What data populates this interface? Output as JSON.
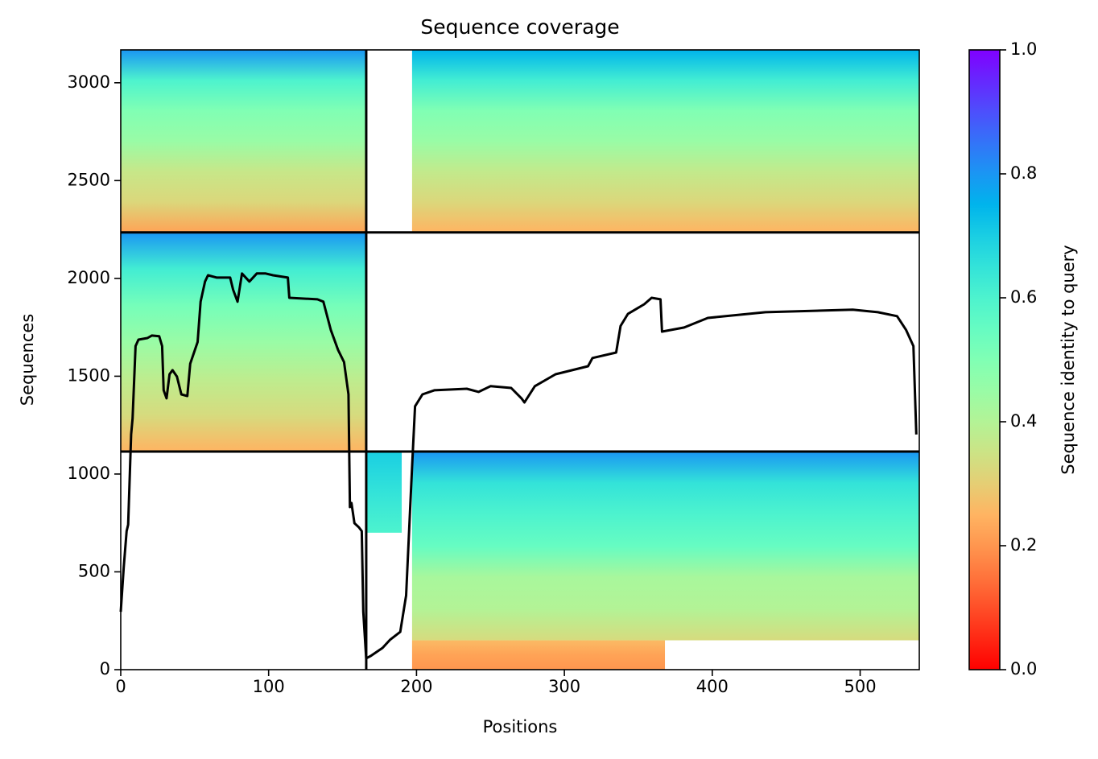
{
  "chart_data": {
    "type": "coverage",
    "title": "Sequence coverage",
    "x_label": "Positions",
    "y_label": "Sequences",
    "colorbar_label": "Sequence identity to query",
    "colormap": "rainbow_r",
    "xlim": [
      0,
      540
    ],
    "ylim": [
      0,
      3168
    ],
    "xticks": [
      0,
      100,
      200,
      300,
      400,
      500
    ],
    "yticks": [
      0,
      500,
      1000,
      1500,
      2000,
      2500,
      3000
    ],
    "clim": [
      0,
      1
    ],
    "cticks": [
      {
        "value": 0,
        "label": "0.0"
      },
      {
        "value": 0.2,
        "label": "0.2"
      },
      {
        "value": 0.4,
        "label": "0.4"
      },
      {
        "value": 0.6,
        "label": "0.6"
      },
      {
        "value": 0.8,
        "label": "0.8"
      },
      {
        "value": 1,
        "label": "1.0"
      }
    ],
    "dividers": {
      "x": [
        166
      ],
      "y": [
        1115,
        2235
      ],
      "color": "#000000"
    },
    "blocks": [
      {
        "x": [
          0,
          166
        ],
        "y": [
          2235,
          3168
        ],
        "identity": [
          0.22,
          0.32,
          0.36,
          0.45,
          0.5,
          0.6,
          0.8
        ]
      },
      {
        "x": [
          0,
          166
        ],
        "y": [
          1115,
          2235
        ],
        "identity": [
          0.25,
          0.33,
          0.38,
          0.45,
          0.52,
          0.62,
          0.8
        ]
      },
      {
        "x": [
          197,
          540
        ],
        "y": [
          2235,
          3168
        ],
        "identity": [
          0.25,
          0.32,
          0.37,
          0.45,
          0.5,
          0.62,
          0.75
        ]
      },
      {
        "x": [
          197,
          540
        ],
        "y": [
          150,
          1115
        ],
        "identity": [
          0.33,
          0.4,
          0.42,
          0.55,
          0.6,
          0.65,
          0.8
        ]
      },
      {
        "x": [
          197,
          368
        ],
        "y": [
          0,
          150
        ],
        "identity": [
          0.2,
          0.22,
          0.26
        ]
      },
      {
        "x": [
          166,
          190
        ],
        "y": [
          700,
          1115
        ],
        "identity": [
          0.6,
          0.65,
          0.7
        ]
      }
    ],
    "line": {
      "color": "#000000",
      "x": [
        0,
        2,
        4,
        5,
        7,
        8,
        10,
        12,
        18,
        21,
        26,
        28,
        29,
        31,
        33,
        35,
        38,
        41,
        45,
        47,
        52,
        54,
        57,
        59,
        65,
        74,
        76,
        79,
        82,
        87,
        92,
        98,
        103,
        113,
        114,
        133,
        137,
        142,
        147,
        151,
        154,
        155,
        156,
        158,
        161,
        163,
        164,
        166,
        169,
        177,
        182,
        189,
        193,
        197,
        199,
        204,
        212,
        234,
        242,
        250,
        264,
        271,
        273,
        280,
        294,
        316,
        319,
        335,
        338,
        343,
        354,
        359,
        365,
        366,
        381,
        397,
        436,
        495,
        512,
        525,
        531,
        536,
        538
      ],
      "values": [
        296,
        523,
        708,
        741,
        1202,
        1284,
        1654,
        1687,
        1695,
        1708,
        1704,
        1654,
        1428,
        1387,
        1510,
        1531,
        1498,
        1407,
        1399,
        1564,
        1675,
        1881,
        1984,
        2016,
        2004,
        2004,
        1942,
        1881,
        2025,
        1984,
        2025,
        2025,
        2016,
        2004,
        1901,
        1893,
        1881,
        1737,
        1634,
        1572,
        1407,
        831,
        852,
        749,
        728,
        708,
        296,
        58,
        70,
        111,
        152,
        193,
        379,
        1037,
        1346,
        1407,
        1428,
        1436,
        1420,
        1449,
        1440,
        1387,
        1366,
        1449,
        1510,
        1551,
        1593,
        1621,
        1757,
        1819,
        1868,
        1901,
        1893,
        1728,
        1749,
        1798,
        1827,
        1840,
        1827,
        1807,
        1737,
        1654,
        1202
      ]
    }
  }
}
